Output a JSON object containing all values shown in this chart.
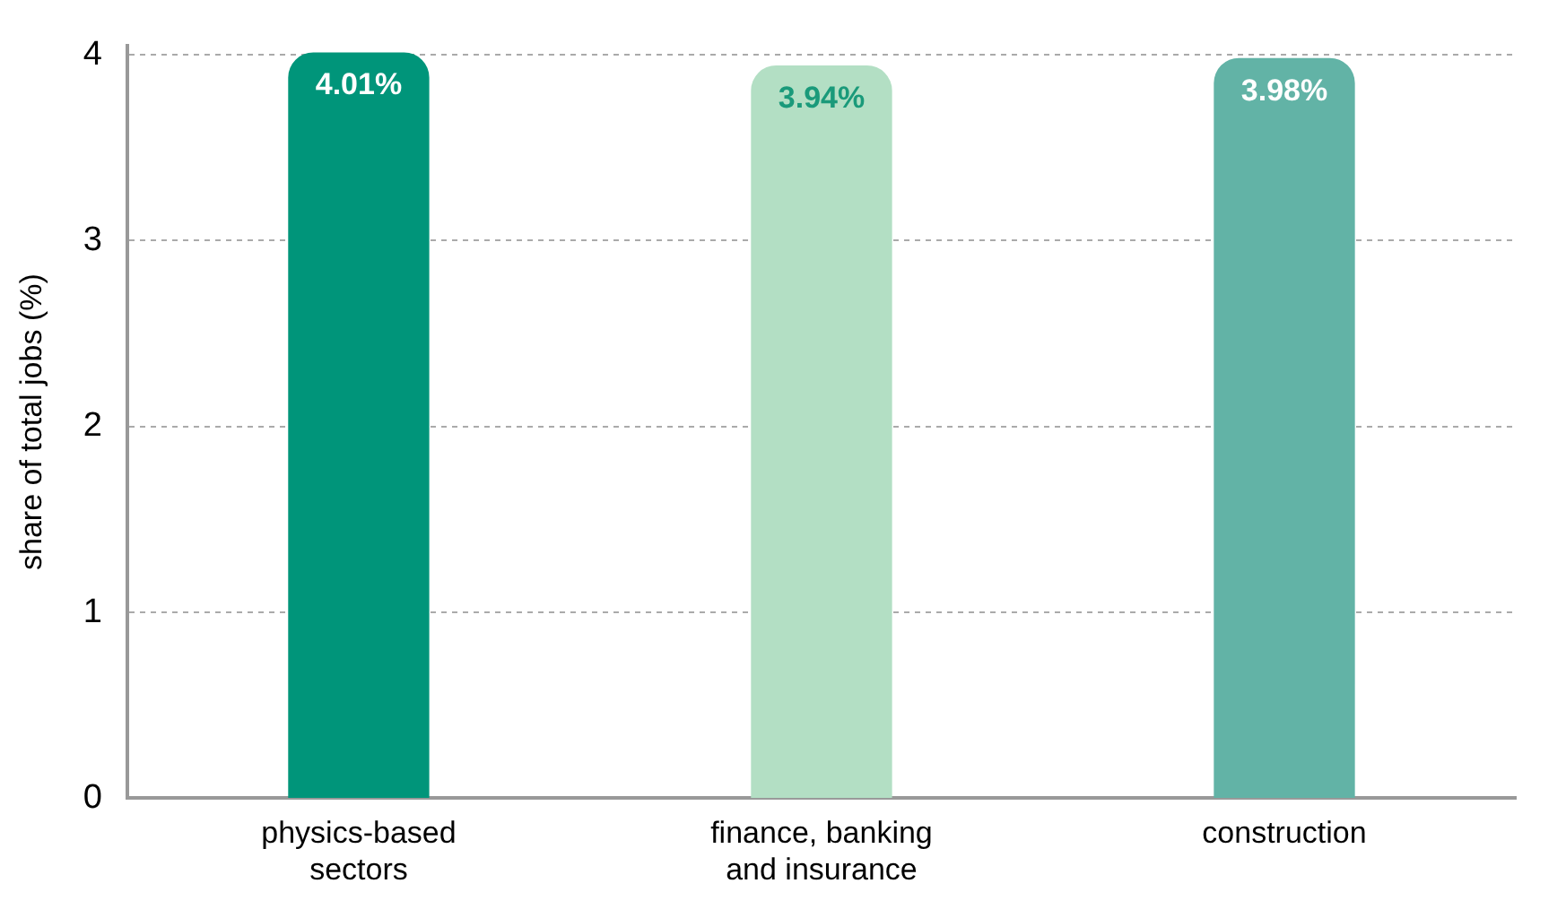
{
  "chart_data": {
    "type": "bar",
    "ylabel": "share of total jobs (%)",
    "categories": [
      "physics-based sectors",
      "finance, banking and insurance",
      "construction"
    ],
    "values": [
      4.01,
      3.94,
      3.98
    ],
    "colors": [
      "#00957a",
      "#b3dfc4",
      "#62b3a6"
    ],
    "value_labels": [
      "4.01%",
      "3.94%",
      "3.98%"
    ],
    "ylim": [
      0,
      4.05
    ],
    "yticks": [
      0,
      1,
      2,
      3,
      4
    ],
    "grid": "y",
    "legend": false
  }
}
